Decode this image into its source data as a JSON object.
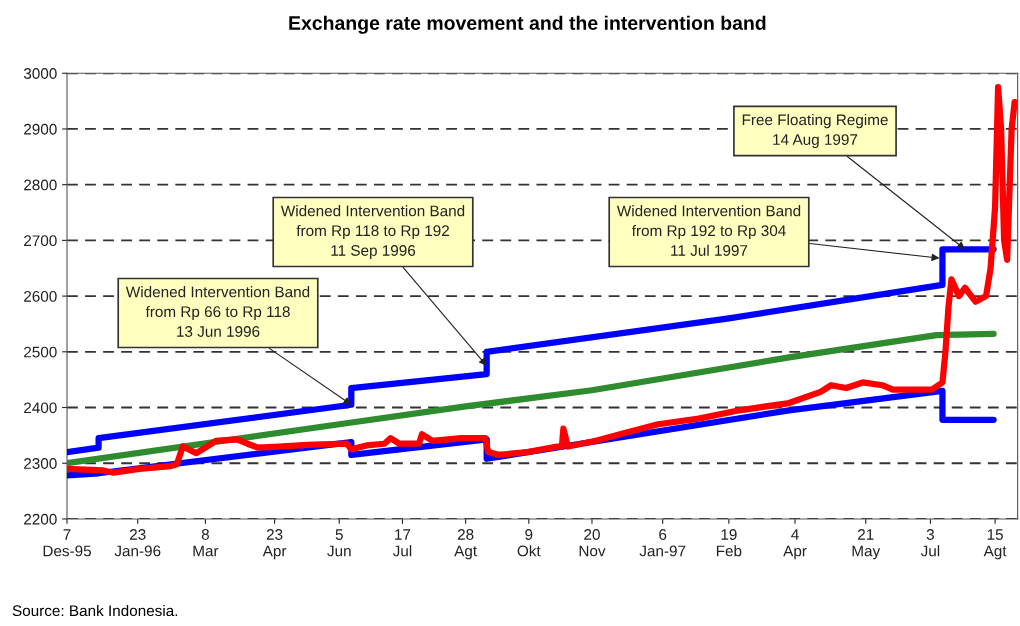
{
  "chart_data": {
    "type": "line",
    "title": "Exchange rate movement and the intervention band",
    "xlim": [
      "1995-12-07",
      "1997-08-30"
    ],
    "xticks": [
      {
        "value": "1995-12-07",
        "label": "7\nDes-95"
      },
      {
        "value": "1996-01-23",
        "label": "23\nJan-96"
      },
      {
        "value": "1996-03-08",
        "label": "8\nMar"
      },
      {
        "value": "1996-04-23",
        "label": "23\nApr"
      },
      {
        "value": "1996-06-05",
        "label": "5\nJun"
      },
      {
        "value": "1996-07-17",
        "label": "17\nJul"
      },
      {
        "value": "1996-08-28",
        "label": "28\nAgt"
      },
      {
        "value": "1996-10-09",
        "label": "9\nOkt"
      },
      {
        "value": "1996-11-20",
        "label": "20\nNov"
      },
      {
        "value": "1997-01-06",
        "label": "6\nJan-97"
      },
      {
        "value": "1997-02-19",
        "label": "19\nFeb"
      },
      {
        "value": "1997-04-04",
        "label": "4\nApr"
      },
      {
        "value": "1997-05-21",
        "label": "21\nMay"
      },
      {
        "value": "1997-07-03",
        "label": "3\nJul"
      },
      {
        "value": "1997-08-15",
        "label": "15\nAgt"
      }
    ],
    "ylim": [
      2200,
      3000
    ],
    "yticks": [
      2200,
      2300,
      2400,
      2500,
      2600,
      2700,
      2800,
      2900,
      3000
    ],
    "grid": "y",
    "legend": false,
    "marker": "none",
    "line_style": "solid",
    "series": [
      {
        "color": "#0000ff",
        "x": [
          "1995-12-07",
          "1995-12-28",
          "1995-12-28",
          "1996-06-13",
          "1996-06-13",
          "1996-09-11",
          "1996-09-11",
          "1997-02-19",
          "1997-07-11",
          "1997-07-11",
          "1997-08-14"
        ],
        "values": [
          2320,
          2328,
          2345,
          2405,
          2435,
          2460,
          2500,
          2560,
          2620,
          2684,
          2684
        ]
      },
      {
        "color": "#0000ff",
        "x": [
          "1995-12-07",
          "1995-12-28",
          "1996-06-13",
          "1996-06-13",
          "1996-09-11",
          "1996-09-11",
          "1997-03-31",
          "1997-07-11",
          "1997-07-11",
          "1997-08-14"
        ],
        "values": [
          2278,
          2282,
          2338,
          2315,
          2343,
          2308,
          2395,
          2430,
          2378,
          2378
        ]
      },
      {
        "color": "#2e8b2e",
        "x": [
          "1995-12-07",
          "1996-06-05",
          "1996-08-28",
          "1996-11-20",
          "1997-03-31",
          "1997-07-07",
          "1997-08-14"
        ],
        "values": [
          2300,
          2370,
          2402,
          2431,
          2490,
          2530,
          2532
        ]
      },
      {
        "color": "#ff0000",
        "x": [
          "1995-12-07",
          "1995-12-31",
          "1996-01-07",
          "1996-01-24",
          "1996-02-14",
          "1996-02-18",
          "1996-02-22",
          "1996-03-02",
          "1996-03-09",
          "1996-03-15",
          "1996-03-29",
          "1996-04-05",
          "1996-04-12",
          "1996-04-26",
          "1996-05-15",
          "1996-06-10",
          "1996-06-13",
          "1996-06-23",
          "1996-07-05",
          "1996-07-09",
          "1996-07-15",
          "1996-07-28",
          "1996-07-30",
          "1996-08-06",
          "1996-08-25",
          "1996-09-10",
          "1996-09-12",
          "1996-09-19",
          "1996-10-08",
          "1996-10-28",
          "1996-10-31",
          "1996-11-01",
          "1996-11-04",
          "1996-11-22",
          "1996-12-13",
          "1997-01-03",
          "1997-01-30",
          "1997-02-26",
          "1997-03-31",
          "1997-04-21",
          "1997-04-28",
          "1997-05-08",
          "1997-05-19",
          "1997-06-01",
          "1997-06-08",
          "1997-07-04",
          "1997-07-11",
          "1997-07-13",
          "1997-07-15",
          "1997-07-17",
          "1997-07-22",
          "1997-07-26",
          "1997-08-02",
          "1997-08-09",
          "1997-08-12",
          "1997-08-15",
          "1997-08-17",
          "1997-08-19",
          "1997-08-21",
          "1997-08-23",
          "1997-08-26",
          "1997-08-28"
        ],
        "values": [
          2290,
          2287,
          2283,
          2290,
          2295,
          2298,
          2330,
          2318,
          2330,
          2340,
          2343,
          2335,
          2328,
          2330,
          2333,
          2335,
          2325,
          2332,
          2335,
          2345,
          2335,
          2335,
          2352,
          2340,
          2345,
          2345,
          2320,
          2315,
          2320,
          2330,
          2330,
          2362,
          2330,
          2340,
          2355,
          2370,
          2380,
          2395,
          2408,
          2428,
          2440,
          2435,
          2445,
          2440,
          2432,
          2432,
          2445,
          2500,
          2580,
          2630,
          2600,
          2615,
          2590,
          2600,
          2650,
          2760,
          2975,
          2900,
          2700,
          2665,
          2900,
          2948
        ]
      }
    ],
    "annotations": [
      {
        "text": "Widened Intervention Band\nfrom Rp 66 to Rp 118\n13 Jun 1996",
        "x": "1996-06-13",
        "y": 2405
      },
      {
        "text": "Widened Intervention Band\nfrom Rp 118 to Rp 192\n11 Sep 1996",
        "x": "1996-09-11",
        "y": 2475
      },
      {
        "text": "Widened Intervention Band\nfrom Rp 192 to Rp 304\n11 Jul 1997",
        "x": "1997-07-09",
        "y": 2668
      },
      {
        "text": "Free Floating Regime\n14 Aug 1997",
        "x": "1997-07-26",
        "y": 2684
      },
      "Source: Bank Indonesia."
    ]
  }
}
